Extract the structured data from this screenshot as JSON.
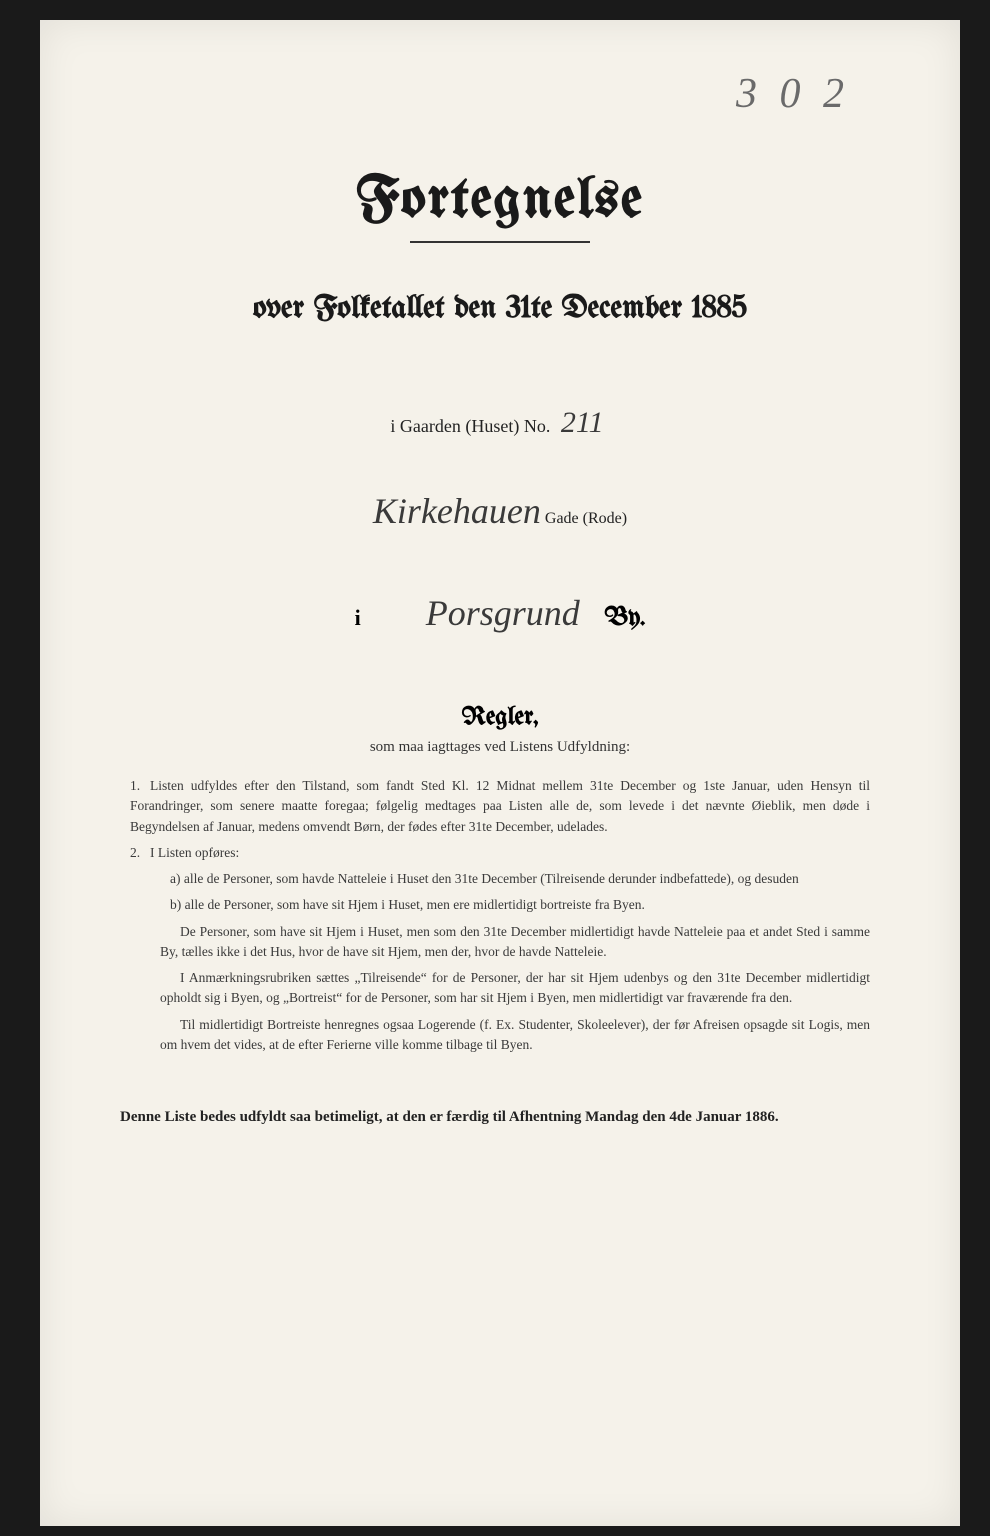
{
  "page_number_handwritten": "3 0 2",
  "title": "Fortegnelse",
  "subtitle": "over Folketallet den 31te December 1885",
  "gaarden_line": {
    "prefix": "i Gaarden (Huset) No.",
    "value": "211"
  },
  "gade_line": {
    "value": "Kirkehauen",
    "suffix": "Gade (Rode)"
  },
  "by_line": {
    "prefix": "i",
    "value": "Porsgrund",
    "suffix": "By."
  },
  "regler": {
    "heading": "Regler,",
    "sub": "som maa iagttages ved Listens Udfyldning:",
    "rule1": "Listen udfyldes efter den Tilstand, som fandt Sted Kl. 12 Midnat mellem 31te December og 1ste Januar, uden Hensyn til Forandringer, som senere maatte foregaa; følgelig medtages paa Listen alle de, som levede i det nævnte Øieblik, men døde i Begyndelsen af Januar, medens omvendt Børn, der fødes efter 31te December, udelades.",
    "rule2_intro": "I Listen opføres:",
    "rule2a": "a) alle de Personer, som havde Natteleie i Huset den 31te December (Tilreisende derunder indbefattede), og desuden",
    "rule2b": "b) alle de Personer, som have sit Hjem i Huset, men ere midlertidigt bortreiste fra Byen.",
    "para3": "De Personer, som have sit Hjem i Huset, men som den 31te December midlertidigt havde Natteleie paa et andet Sted i samme By, tælles ikke i det Hus, hvor de have sit Hjem, men der, hvor de havde Natteleie.",
    "para4": "I Anmærkningsrubriken sættes „Tilreisende“ for de Personer, der har sit Hjem udenbys og den 31te December midlertidigt opholdt sig i Byen, og „Bortreist“ for de Personer, som har sit Hjem i Byen, men midlertidigt var fraværende fra den.",
    "para5": "Til midlertidigt Bortreiste henregnes ogsaa Logerende (f. Ex. Studenter, Skoleelever), der før Afreisen opsagde sit Logis, men om hvem det vides, at de efter Ferierne ville komme tilbage til Byen."
  },
  "footer": "Denne Liste bedes udfyldt saa betimeligt, at den er færdig til Afhentning Mandag den 4de Januar 1886."
}
